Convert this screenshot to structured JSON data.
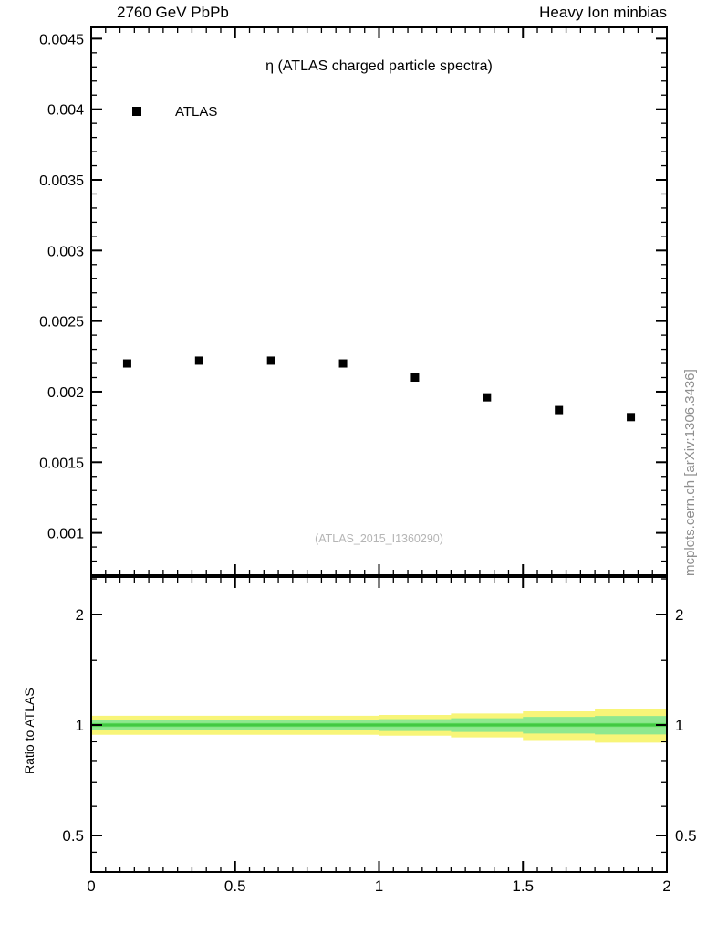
{
  "header": {
    "left": "2760 GeV PbPb",
    "right": "Heavy Ion minbias"
  },
  "side_label": "mcplots.cern.ch [arXiv:1306.3436]",
  "colors": {
    "marker": "#000000",
    "band_outer": "#f8f578",
    "band_inner": "#8fe88f",
    "band_core": "#57d657",
    "reference_line": "#3cc43c",
    "watermark": "#b5b5b5",
    "side_label": "#8f8f8f"
  },
  "chart_data": [
    {
      "type": "scatter",
      "panel": "main",
      "title": "η (ATLAS charged particle spectra)",
      "watermark": "(ATLAS_2015_I1360290)",
      "legend": [
        {
          "label": "ATLAS",
          "marker": "black-filled-square"
        }
      ],
      "x": [
        0.125,
        0.375,
        0.625,
        0.875,
        1.125,
        1.375,
        1.625,
        1.875
      ],
      "y": [
        0.0022,
        0.00222,
        0.00222,
        0.0022,
        0.0021,
        0.00196,
        0.00187,
        0.00182
      ],
      "xlim": [
        0,
        2
      ],
      "ylim": [
        0.0007,
        0.00458
      ],
      "yticks": [
        0.001,
        0.0015,
        0.002,
        0.0025,
        0.003,
        0.0035,
        0.004,
        0.0045
      ],
      "ytick_labels": [
        "0.001",
        "0.0015",
        "0.002",
        "0.0025",
        "0.003",
        "0.0035",
        "0.004",
        "0.0045"
      ],
      "xticks": [
        0,
        0.5,
        1,
        1.5,
        2
      ],
      "xtick_labels": [
        "0",
        "0.5",
        "1",
        "1.5",
        "2"
      ],
      "x_minor_step": 0.05,
      "y_minor_step": 0.0001,
      "grid": false,
      "legend_position": "top-left-inside"
    },
    {
      "type": "area",
      "panel": "ratio",
      "ylabel": "Ratio to ATLAS",
      "yscale": "log",
      "ylim": [
        0.4,
        2.53
      ],
      "yticks": [
        0.5,
        1,
        2
      ],
      "ytick_labels": [
        "0.5",
        "1",
        "2"
      ],
      "y_minor_ticks": [
        0.45,
        0.6,
        0.7,
        0.8,
        0.9,
        1.5,
        2.5
      ],
      "reference_line_y": 1,
      "bin_edges": [
        0,
        0.25,
        0.5,
        0.75,
        1.0,
        1.25,
        1.5,
        1.75,
        2.0
      ],
      "bands": [
        {
          "name": "uncertainty-band-outer",
          "color": "#f8f578",
          "lo": [
            0.94,
            0.94,
            0.94,
            0.94,
            0.935,
            0.925,
            0.91,
            0.895
          ],
          "hi": [
            1.06,
            1.06,
            1.06,
            1.06,
            1.065,
            1.075,
            1.09,
            1.105
          ]
        },
        {
          "name": "uncertainty-band-inner",
          "color": "#8fe88f",
          "lo": [
            0.966,
            0.966,
            0.966,
            0.966,
            0.963,
            0.957,
            0.948,
            0.942
          ],
          "hi": [
            1.034,
            1.034,
            1.034,
            1.034,
            1.037,
            1.043,
            1.052,
            1.058
          ]
        },
        {
          "name": "uncertainty-band-core",
          "color": "#57d657",
          "lo": [
            0.988,
            0.988,
            0.988,
            0.988,
            0.988,
            0.988,
            0.988,
            0.988
          ],
          "hi": [
            1.012,
            1.012,
            1.012,
            1.012,
            1.012,
            1.012,
            1.012,
            1.012
          ]
        }
      ]
    }
  ]
}
